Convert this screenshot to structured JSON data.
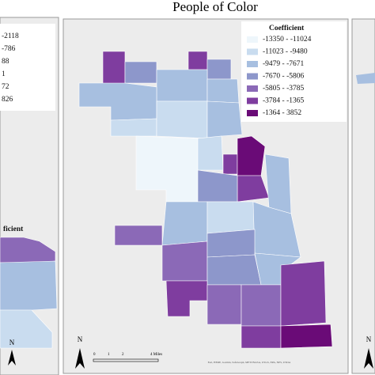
{
  "title": "People of Color",
  "center_legend": {
    "title": "Coefficient",
    "items": [
      {
        "label": "-13350 - -11024",
        "color": "#eef6fb"
      },
      {
        "label": "-11023 - -9480",
        "color": "#c9dcef"
      },
      {
        "label": "-9479 - -7671",
        "color": "#a7bfe0"
      },
      {
        "label": "-7670 - -5806",
        "color": "#8d97cb"
      },
      {
        "label": "-5805 - -3785",
        "color": "#8b69b7"
      },
      {
        "label": "-3784 - -1365",
        "color": "#7f3d9f"
      },
      {
        "label": "-1364 - 3852",
        "color": "#6a0b77"
      }
    ]
  },
  "left_legend": {
    "title": "ficient",
    "labels": [
      "-2118",
      "-786",
      "88",
      "1",
      "72",
      "826"
    ]
  },
  "scale_bar": {
    "labels": [
      "0",
      "1",
      "2",
      "4 Miles"
    ]
  },
  "north": "N",
  "attribution": "Esri, HERE, Garmin, SafeGraph, METI/NASA, USGS, EPA, NPS, USDA"
}
